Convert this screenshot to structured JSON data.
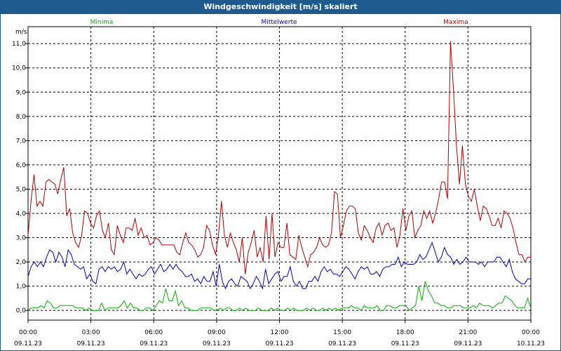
{
  "window": {
    "title": "Windgeschwindigkeit [m/s] skaliert"
  },
  "chart_data": {
    "type": "line",
    "title": "Windgeschwindigkeit [m/s] skaliert",
    "ylabel": "m/s",
    "ylim": [
      -0.4,
      11.7
    ],
    "yticks": [
      "0,0",
      "1,0",
      "2,0",
      "3,0",
      "4,0",
      "5,0",
      "6,0",
      "7,0",
      "8,0",
      "9,0",
      "10,0",
      "11,0"
    ],
    "ytick_values": [
      0,
      1,
      2,
      3,
      4,
      5,
      6,
      7,
      8,
      9,
      10,
      11
    ],
    "xlim": [
      0,
      24
    ],
    "xticks": [
      {
        "time": "00:00",
        "date": "09.11.23"
      },
      {
        "time": "03:00",
        "date": "09.11.23"
      },
      {
        "time": "06:00",
        "date": "09.11.23"
      },
      {
        "time": "09:00",
        "date": "09.11.23"
      },
      {
        "time": "12:00",
        "date": "09.11.23"
      },
      {
        "time": "15:00",
        "date": "09.11.23"
      },
      {
        "time": "18:00",
        "date": "09.11.23"
      },
      {
        "time": "21:00",
        "date": "09.11.23"
      },
      {
        "time": "00:00",
        "date": "10.11.23"
      }
    ],
    "grid": true,
    "legend_placement": "top",
    "series": [
      {
        "name": "Minima",
        "color": "#00b000",
        "values": [
          0.0,
          0.1,
          0.1,
          0.1,
          0.2,
          0.1,
          0.4,
          0.3,
          0.1,
          0.1,
          0.2,
          0.2,
          0.2,
          0.2,
          0.2,
          0.1,
          0.1,
          0.1,
          0.0,
          0.1,
          0.0,
          0.0,
          0.0,
          0.3,
          0.0,
          0.1,
          0.1,
          0.1,
          0.1,
          0.2,
          0.4,
          0.1,
          0.3,
          0.1,
          0.1,
          0.0,
          0.0,
          0.1,
          0.1,
          0.0,
          0.2,
          0.4,
          0.3,
          0.9,
          0.4,
          0.4,
          0.8,
          0.2,
          0.4,
          0.1,
          0.1,
          0.0,
          0.0,
          0.0,
          0.1,
          0.1,
          0.1,
          0.1,
          0.0,
          0.0,
          0.1,
          0.0,
          0.1,
          0.1,
          0.0,
          0.0,
          0.1,
          0.0,
          0.1,
          0.0,
          0.0,
          0.0,
          0.1,
          0.0,
          0.0,
          0.0,
          0.1,
          0.0,
          0.1,
          0.0,
          0.0,
          0.1,
          0.0,
          0.1,
          0.0,
          0.0,
          0.0,
          0.1,
          0.0,
          0.1,
          0.0,
          0.0,
          0.1,
          0.0,
          0.1,
          0.0,
          0.1,
          0.0,
          0.1,
          0.1,
          0.1,
          0.2,
          0.1,
          0.1,
          0.0,
          0.2,
          0.1,
          0.1,
          0.1,
          0.2,
          0.0,
          0.0,
          0.2,
          0.2,
          0.1,
          0.1,
          0.2,
          0.2,
          0.2,
          0.0,
          0.1,
          0.2,
          1.0,
          0.4,
          1.2,
          0.8,
          0.6,
          0.3,
          0.3,
          0.2,
          0.2,
          0.1,
          0.1,
          0.2,
          0.2,
          0.2,
          0.1,
          0.1,
          0.1,
          0.2,
          0.1,
          0.3,
          0.2,
          0.2,
          0.2,
          0.1,
          0.2,
          0.3,
          0.3,
          0.6,
          0.5,
          0.4,
          0.2,
          0.1,
          0.1,
          0.1,
          0.5,
          0.1
        ]
      },
      {
        "name": "Mittelwerte",
        "color": "#0000b0",
        "values": [
          1.4,
          1.8,
          2.0,
          1.8,
          2.0,
          1.8,
          2.2,
          2.5,
          2.4,
          2.0,
          2.4,
          2.2,
          1.8,
          2.5,
          2.3,
          1.9,
          1.8,
          1.7,
          1.8,
          1.3,
          1.5,
          1.2,
          1.1,
          1.7,
          1.8,
          1.6,
          1.8,
          1.7,
          1.8,
          1.6,
          1.7,
          2.0,
          1.5,
          1.7,
          1.5,
          1.3,
          1.5,
          1.4,
          1.5,
          1.7,
          1.8,
          1.5,
          1.7,
          1.9,
          1.6,
          1.7,
          1.9,
          1.7,
          1.9,
          1.7,
          1.6,
          1.4,
          1.4,
          1.5,
          1.2,
          1.3,
          1.1,
          1.4,
          1.2,
          1.2,
          1.6,
          1.0,
          1.9,
          1.2,
          0.9,
          1.2,
          1.3,
          1.1,
          1.0,
          1.4,
          1.3,
          1.2,
          0.9,
          1.1,
          1.4,
          1.2,
          0.9,
          1.7,
          1.1,
          1.3,
          1.5,
          1.6,
          1.2,
          1.4,
          1.4,
          1.8,
          1.2,
          1.0,
          1.2,
          0.9,
          0.9,
          1.2,
          1.2,
          1.4,
          1.2,
          1.6,
          1.8,
          1.6,
          1.7,
          1.5,
          1.5,
          1.4,
          1.6,
          1.8,
          1.7,
          1.5,
          1.3,
          1.6,
          1.8,
          1.7,
          1.8,
          1.5,
          1.5,
          1.6,
          1.4,
          1.7,
          1.8,
          1.8,
          1.9,
          1.9,
          2.2,
          1.8,
          2.0,
          1.9,
          1.9,
          1.9,
          2.0,
          2.3,
          2.1,
          2.2,
          2.5,
          2.8,
          2.4,
          2.0,
          2.2,
          2.6,
          2.3,
          2.2,
          1.9,
          2.1,
          1.9,
          2.0,
          2.2,
          2.0,
          2.0,
          2.0,
          1.9,
          2.0,
          1.8,
          2.0,
          2.0,
          2.0,
          2.2,
          2.2,
          2.0,
          1.8,
          2.1,
          1.6,
          1.3,
          1.2,
          1.1,
          1.1,
          1.3,
          1.3
        ]
      },
      {
        "name": "Maxima",
        "color": "#b00000",
        "values": [
          3.1,
          4.5,
          5.6,
          4.3,
          4.5,
          4.3,
          5.3,
          5.4,
          5.3,
          5.2,
          4.8,
          5.4,
          5.9,
          3.9,
          4.2,
          3.2,
          2.8,
          2.6,
          3.1,
          4.1,
          4.0,
          3.6,
          3.4,
          3.9,
          4.1,
          3.3,
          3.0,
          3.6,
          2.5,
          2.3,
          3.5,
          3.1,
          2.8,
          3.4,
          3.4,
          3.3,
          3.8,
          3.1,
          3.4,
          3.0,
          3.1,
          2.7,
          2.8,
          3.0,
          2.9,
          2.7,
          2.7,
          2.7,
          2.7,
          2.7,
          2.4,
          2.3,
          2.8,
          3.2,
          2.8,
          2.7,
          2.5,
          2.2,
          2.3,
          2.6,
          3.5,
          3.3,
          2.7,
          2.3,
          3.1,
          4.5,
          3.1,
          2.6,
          3.2,
          2.8,
          2.5,
          2.0,
          3.0,
          1.5,
          2.4,
          2.8,
          3.3,
          2.2,
          2.6,
          2.0,
          3.9,
          2.1,
          4.0,
          2.2,
          2.8,
          2.6,
          2.6,
          3.6,
          2.3,
          2.2,
          2.1,
          3.1,
          2.6,
          2.2,
          1.8,
          2.3,
          2.4,
          2.6,
          3.0,
          2.7,
          2.6,
          2.7,
          3.2,
          4.9,
          4.8,
          3.0,
          3.5,
          4.1,
          4.3,
          4.3,
          4.2,
          3.2,
          2.9,
          3.5,
          3.3,
          3.0,
          2.8,
          3.4,
          3.6,
          3.1,
          3.5,
          3.6,
          3.3,
          3.4,
          2.6,
          3.1,
          4.2,
          3.3,
          3.9,
          4.1,
          3.0,
          3.3,
          3.5,
          4.1,
          3.8,
          4.1,
          3.6,
          4.0,
          4.6,
          5.3,
          5.3,
          4.6,
          11.1,
          9.1,
          6.8,
          5.2,
          6.8,
          5.2,
          4.7,
          4.5,
          5.0,
          4.3,
          3.7,
          4.3,
          4.2,
          3.9,
          3.5,
          3.5,
          3.8,
          3.4,
          4.1,
          4.0,
          3.8,
          3.4,
          2.8,
          2.3,
          2.3,
          2.0,
          2.2,
          2.2
        ]
      }
    ]
  }
}
